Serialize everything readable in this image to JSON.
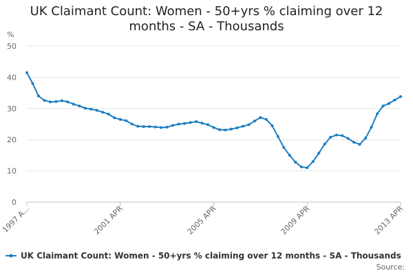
{
  "chart_data": {
    "type": "line",
    "title": "UK Claimant Count: Women - 50+yrs % claiming over 12 months - SA - Thousands",
    "y_label": "%",
    "source_label": "Source:",
    "categories": [
      "1997 A...",
      null,
      null,
      null,
      null,
      null,
      null,
      null,
      null,
      null,
      null,
      null,
      null,
      null,
      null,
      null,
      "2001 APR",
      null,
      null,
      null,
      null,
      null,
      null,
      null,
      null,
      null,
      null,
      null,
      null,
      null,
      null,
      null,
      "2005 APR",
      null,
      null,
      null,
      null,
      null,
      null,
      null,
      null,
      null,
      null,
      null,
      null,
      null,
      null,
      null,
      "2009 APR",
      null,
      null,
      null,
      null,
      null,
      null,
      null,
      null,
      null,
      null,
      null,
      null,
      null,
      null,
      null,
      "2013 APR"
    ],
    "series": [
      {
        "name": "UK Claimant Count: Women - 50+yrs % claiming over 12 months - SA - Thousands",
        "color": "#1a7dc0",
        "values": [
          41.5,
          38,
          34,
          32.6,
          32.1,
          32.2,
          32.5,
          32.1,
          31.4,
          30.8,
          30.1,
          29.8,
          29.4,
          28.8,
          28.2,
          27,
          26.5,
          26.1,
          25,
          24.3,
          24.2,
          24.2,
          24.1,
          23.9,
          24,
          24.6,
          25,
          25.2,
          25.5,
          25.8,
          25.3,
          24.8,
          23.9,
          23.2,
          23.1,
          23.4,
          23.8,
          24.3,
          24.8,
          26,
          27.1,
          26.5,
          24.5,
          21,
          17.5,
          15,
          12.8,
          11.3,
          11,
          13,
          15.7,
          18.6,
          20.8,
          21.5,
          21.3,
          20.4,
          19.2,
          18.5,
          20.5,
          24,
          28.3,
          30.8,
          31.6,
          32.7,
          33.8
        ]
      }
    ],
    "ylim": [
      0,
      50
    ],
    "yticks": [
      0,
      10,
      20,
      30,
      40,
      50
    ],
    "grid": true
  }
}
